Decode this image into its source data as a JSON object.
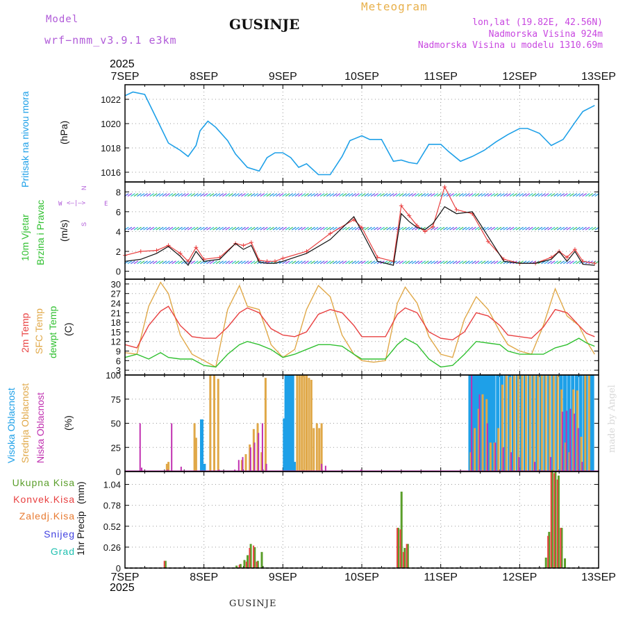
{
  "header": {
    "model_label": "Model",
    "model_name": "wrf−nmm_v3.9.1  e3km",
    "location": "GUSINJE",
    "meteogram": "Meteogram",
    "coords": "lon,lat (19.82E, 42.56N)",
    "elevation": "Nadmorska Visina 924m",
    "model_elevation": "Nadmorska Visina u modelu 1310.69m",
    "year_top": "2025",
    "year_bottom": "2025",
    "footer_location": "GUSINJE",
    "watermark": "made by Angel"
  },
  "colors": {
    "pressure": "#1ea0e8",
    "t2m": "#e84040",
    "sfc": "#e0a848",
    "dewpt": "#30c030",
    "high_cloud": "#1ea0e8",
    "mid_cloud": "#e0a848",
    "low_cloud": "#c030b0",
    "total_precip": "#5a9e2a",
    "conv_precip": "#e84040",
    "wind_speed": "#101010"
  },
  "chart_data": [
    {
      "type": "line",
      "title": "Pritisak na nivou mora",
      "unit_label": "(hPa)",
      "x_tick_labels": [
        "7SEP",
        "8SEP",
        "9SEP",
        "10SEP",
        "11SEP",
        "12SEP",
        "13SEP"
      ],
      "ylim": [
        1015.2,
        1023.2
      ],
      "y_ticks": [
        1016,
        1018,
        1020,
        1022
      ],
      "grid": true,
      "x_days": [
        0,
        0.1,
        0.25,
        0.4,
        0.55,
        0.7,
        0.8,
        0.9,
        0.95,
        1.05,
        1.15,
        1.3,
        1.4,
        1.55,
        1.7,
        1.8,
        1.9,
        2.0,
        2.1,
        2.2,
        2.3,
        2.45,
        2.6,
        2.75,
        2.85,
        3.0,
        3.1,
        3.25,
        3.4,
        3.5,
        3.6,
        3.7,
        3.85,
        4.0,
        4.1,
        4.25,
        4.4,
        4.55,
        4.7,
        4.85,
        5.0,
        5.1,
        5.25,
        5.4,
        5.55,
        5.7,
        5.8,
        5.95
      ],
      "values": [
        1022.3,
        1022.6,
        1022.4,
        1020.4,
        1018.4,
        1017.8,
        1017.3,
        1018.2,
        1019.4,
        1020.2,
        1019.7,
        1018.6,
        1017.5,
        1016.4,
        1016.1,
        1017.2,
        1017.6,
        1017.6,
        1017.2,
        1016.4,
        1016.7,
        1015.8,
        1015.8,
        1017.3,
        1018.6,
        1019.0,
        1018.7,
        1018.7,
        1016.9,
        1017.0,
        1016.8,
        1016.7,
        1018.3,
        1018.3,
        1017.7,
        1016.9,
        1017.3,
        1017.8,
        1018.5,
        1019.1,
        1019.6,
        1019.6,
        1019.2,
        1018.2,
        1018.7,
        1020.1,
        1021.0,
        1021.5
      ]
    },
    {
      "type": "line",
      "title": "10m Vjetar Brzina i Pravac",
      "unit_label": "(m/s)",
      "compass": {
        "n": "N",
        "s": "S",
        "e": "E",
        "w": "W"
      },
      "ylim": [
        -0.8,
        9.0
      ],
      "y_ticks": [
        0,
        2,
        4,
        6,
        8
      ],
      "grid": true,
      "direction_band_levels": [
        0.9,
        4.3,
        7.7
      ],
      "series": [
        {
          "name": "wind speed",
          "x_days": [
            0,
            0.2,
            0.4,
            0.55,
            0.7,
            0.8,
            0.9,
            1.0,
            1.2,
            1.4,
            1.5,
            1.6,
            1.7,
            1.8,
            1.9,
            2.0,
            2.3,
            2.6,
            2.9,
            3.0,
            3.2,
            3.4,
            3.5,
            3.6,
            3.7,
            3.8,
            3.9,
            4.05,
            4.2,
            4.4,
            4.6,
            4.8,
            5.0,
            5.2,
            5.4,
            5.5,
            5.6,
            5.7,
            5.8,
            5.95
          ],
          "values": [
            1.0,
            1.2,
            1.8,
            2.5,
            1.5,
            0.6,
            2.0,
            1.0,
            1.2,
            2.8,
            2.2,
            2.6,
            0.9,
            0.8,
            0.8,
            1.0,
            1.8,
            3.2,
            5.5,
            4.0,
            1.0,
            0.6,
            5.8,
            5.0,
            4.4,
            4.2,
            4.8,
            6.5,
            5.8,
            6.0,
            3.5,
            1.0,
            0.8,
            0.8,
            1.2,
            2.0,
            1.0,
            2.0,
            0.7,
            0.6
          ]
        },
        {
          "name": "gust",
          "x_days": [
            0,
            0.2,
            0.4,
            0.55,
            0.7,
            0.8,
            0.9,
            1.0,
            1.2,
            1.4,
            1.5,
            1.6,
            1.7,
            1.8,
            1.9,
            2.0,
            2.3,
            2.6,
            2.9,
            3.0,
            3.2,
            3.4,
            3.5,
            3.6,
            3.7,
            3.8,
            3.9,
            4.05,
            4.2,
            4.4,
            4.6,
            4.8,
            5.0,
            5.2,
            5.4,
            5.5,
            5.6,
            5.7,
            5.8,
            5.95
          ],
          "values": [
            1.6,
            2.0,
            2.1,
            2.6,
            1.8,
            1.0,
            2.4,
            1.2,
            1.4,
            2.8,
            2.6,
            2.9,
            1.1,
            1.0,
            1.0,
            1.3,
            2.0,
            3.8,
            5.2,
            4.4,
            1.4,
            1.0,
            6.6,
            5.6,
            4.6,
            4.0,
            4.5,
            8.5,
            6.2,
            5.8,
            3.0,
            1.2,
            0.8,
            0.8,
            1.4,
            2.0,
            1.4,
            2.2,
            1.0,
            0.8
          ]
        }
      ]
    },
    {
      "type": "line",
      "title": "2m Temp / SFC Temp / dewpt Temp",
      "unit_label": "(C)",
      "ylim": [
        1.5,
        31.5
      ],
      "y_ticks": [
        3,
        6,
        9,
        12,
        15,
        18,
        21,
        24,
        27,
        30
      ],
      "grid": true,
      "series": [
        {
          "name": "2m Temp",
          "x_days": [
            0,
            0.15,
            0.3,
            0.45,
            0.55,
            0.7,
            0.85,
            1.0,
            1.15,
            1.3,
            1.45,
            1.55,
            1.7,
            1.85,
            2.0,
            2.15,
            2.3,
            2.45,
            2.6,
            2.75,
            2.9,
            3.0,
            3.15,
            3.3,
            3.45,
            3.55,
            3.7,
            3.85,
            4.0,
            4.15,
            4.3,
            4.45,
            4.6,
            4.75,
            4.85,
            5.0,
            5.15,
            5.3,
            5.45,
            5.6,
            5.75,
            5.85,
            5.95
          ],
          "values": [
            11,
            10,
            17,
            21.5,
            23,
            17,
            13.5,
            13,
            13,
            16.5,
            21,
            22.5,
            21,
            16,
            14,
            13.5,
            15,
            20.5,
            22,
            21,
            17,
            13.5,
            13.5,
            13.5,
            20.5,
            22.5,
            21,
            15,
            13,
            12.5,
            15,
            21,
            20,
            17,
            14,
            13.5,
            13,
            16.5,
            22,
            21,
            17,
            14.5,
            13.5
          ]
        },
        {
          "name": "SFC Temp",
          "x_days": [
            0,
            0.15,
            0.3,
            0.45,
            0.55,
            0.7,
            0.85,
            1.0,
            1.15,
            1.3,
            1.45,
            1.55,
            1.7,
            1.85,
            2.0,
            2.15,
            2.3,
            2.45,
            2.6,
            2.75,
            2.9,
            3.0,
            3.15,
            3.3,
            3.45,
            3.55,
            3.7,
            3.85,
            4.0,
            4.15,
            4.3,
            4.45,
            4.6,
            4.75,
            4.85,
            5.0,
            5.15,
            5.3,
            5.45,
            5.6,
            5.75,
            5.85,
            5.95
          ],
          "values": [
            8.5,
            8,
            23,
            30.5,
            27,
            14,
            8,
            6,
            4,
            22,
            29.5,
            23,
            22,
            11,
            7,
            9.5,
            22,
            29.5,
            26,
            14,
            8,
            6,
            5.5,
            6,
            24,
            29,
            24,
            13.5,
            8,
            7,
            19,
            26,
            22,
            15,
            11,
            9,
            8,
            17,
            28.5,
            20,
            17,
            12,
            8
          ]
        },
        {
          "name": "dewpt Temp",
          "x_days": [
            0,
            0.15,
            0.3,
            0.45,
            0.55,
            0.7,
            0.85,
            1.0,
            1.15,
            1.3,
            1.45,
            1.55,
            1.7,
            1.85,
            2.0,
            2.15,
            2.3,
            2.45,
            2.6,
            2.75,
            2.9,
            3.0,
            3.15,
            3.3,
            3.45,
            3.55,
            3.7,
            3.85,
            4.0,
            4.15,
            4.3,
            4.45,
            4.6,
            4.75,
            4.85,
            5.0,
            5.15,
            5.3,
            5.45,
            5.6,
            5.75,
            5.85,
            5.95
          ],
          "values": [
            7,
            8,
            6.5,
            8.5,
            7,
            6.5,
            6.5,
            4.5,
            4,
            8,
            11,
            12,
            11,
            9.5,
            7,
            8,
            9.5,
            11,
            11,
            10.5,
            8,
            6.5,
            6.5,
            6.5,
            11,
            13,
            11,
            6.5,
            4,
            4.5,
            8,
            12,
            11.5,
            11,
            9,
            8,
            8,
            8,
            10,
            11,
            13,
            11.5,
            10.5
          ]
        }
      ]
    },
    {
      "type": "bar",
      "title": "Visoka Oblacnost / Srednja Oblacnost / Niska Oblacnost",
      "unit_label": "(%)",
      "ylim": [
        0,
        100
      ],
      "y_ticks": [
        0,
        25,
        50,
        75,
        100
      ],
      "grid": true,
      "series": [
        {
          "name": "Visoka Oblacnost",
          "x_days": [
            0.95,
            0.98,
            2.0,
            2.02,
            2.04,
            2.06,
            2.08,
            2.1,
            2.12,
            4.35,
            4.38,
            4.41,
            4.44,
            4.47,
            4.5,
            4.53,
            4.56,
            4.59,
            4.62,
            4.65,
            4.7,
            4.75,
            4.8,
            4.85,
            4.9,
            4.95,
            5.0,
            5.05,
            5.1,
            5.15,
            5.2,
            5.25,
            5.3,
            5.35,
            5.4,
            5.45,
            5.5,
            5.55,
            5.6,
            5.65,
            5.7,
            5.75,
            5.8,
            5.5,
            5.55,
            5.6,
            5.8,
            5.82,
            5.88,
            5.9
          ],
          "values": [
            54,
            8,
            55,
            100,
            100,
            100,
            100,
            100,
            10,
            100,
            100,
            100,
            100,
            100,
            100,
            100,
            100,
            100,
            100,
            100,
            100,
            100,
            100,
            100,
            100,
            100,
            100,
            100,
            100,
            100,
            100,
            100,
            100,
            100,
            100,
            100,
            100,
            100,
            100,
            100,
            100,
            100,
            100,
            100,
            100,
            100,
            100,
            100,
            100,
            100
          ]
        },
        {
          "name": "Srednja Oblacnost",
          "x_days": [
            0.5,
            0.52,
            0.85,
            0.87,
            1.05,
            1.1,
            1.15,
            1.45,
            1.5,
            1.55,
            1.6,
            1.65,
            1.7,
            1.75,
            2.15,
            2.18,
            2.21,
            2.24,
            2.27,
            2.3,
            2.33,
            2.36,
            2.4,
            2.43,
            2.46,
            4.35,
            4.4,
            4.45,
            4.5,
            4.55,
            4.6,
            4.65,
            4.7,
            4.75,
            4.8,
            4.85,
            4.9,
            4.95,
            5.0,
            5.05,
            5.1,
            5.15,
            5.2,
            5.25,
            5.3,
            5.35,
            5.4,
            5.45,
            5.5,
            5.55,
            5.6,
            5.65,
            5.7,
            5.75,
            5.8,
            5.85
          ],
          "values": [
            8,
            10,
            50,
            35,
            100,
            100,
            96,
            12,
            18,
            28,
            44,
            50,
            20,
            97,
            100,
            100,
            100,
            100,
            100,
            97,
            95,
            45,
            50,
            45,
            50,
            20,
            45,
            65,
            80,
            75,
            30,
            30,
            45,
            90,
            100,
            98,
            100,
            100,
            100,
            100,
            100,
            100,
            100,
            100,
            100,
            100,
            100,
            100,
            85,
            30,
            20,
            85,
            84,
            36,
            100,
            100
          ]
        },
        {
          "name": "Niska Oblacnost",
          "x_days": [
            0.2,
            0.22,
            0.55,
            0.6,
            0.72,
            1.2,
            1.4,
            1.45,
            1.5,
            1.6,
            1.65,
            1.7,
            1.75,
            1.8,
            2.5,
            2.55,
            3.0,
            4.4,
            4.5,
            4.6,
            4.7,
            4.8,
            4.9,
            5.0,
            5.2,
            5.4,
            5.55,
            5.6,
            5.65,
            5.7,
            5.75,
            5.8
          ],
          "values": [
            50,
            4,
            2,
            50,
            5,
            2,
            2,
            12,
            15,
            25,
            30,
            40,
            50,
            8,
            8,
            6,
            2,
            100,
            80,
            50,
            30,
            25,
            20,
            15,
            10,
            15,
            62,
            63,
            65,
            60,
            45,
            10
          ]
        }
      ]
    },
    {
      "type": "bar",
      "title": "1hr Precip",
      "unit_label": "(mm)",
      "ylim": [
        0,
        1.2
      ],
      "y_ticks": [
        0,
        0.26,
        0.52,
        0.78,
        1.04
      ],
      "y_tick_labels": [
        "0",
        "0.26",
        "0.52",
        "0.78",
        "1.04"
      ],
      "grid": true,
      "legend": [
        "Ukupna Kisa",
        "Konvek.Kisa",
        "Zaledj.Kisa",
        "Snijeg",
        "Grad"
      ],
      "series": [
        {
          "name": "Ukupna Kisa",
          "x_days": [
            0.5,
            1.4,
            1.45,
            1.5,
            1.54,
            1.58,
            1.63,
            1.67,
            1.72,
            3.45,
            3.49,
            3.53,
            3.57,
            3.61,
            3.65,
            5.32,
            5.36,
            5.4,
            5.44,
            5.48,
            5.52,
            5.56,
            5.6
          ],
          "values": [
            0.09,
            0.03,
            0.05,
            0.1,
            0.16,
            0.3,
            0.26,
            0.09,
            0.2,
            0.5,
            0.95,
            0.25,
            0.3,
            0,
            0,
            0.13,
            0.45,
            1.22,
            1.2,
            1.15,
            0.5,
            0.12,
            0
          ]
        },
        {
          "name": "Konvek.Kisa",
          "x_days": [
            0.49,
            1.44,
            1.53,
            1.57,
            1.62,
            1.66,
            3.44,
            3.48,
            3.52,
            3.56,
            5.35,
            5.39,
            5.43,
            5.47,
            5.51
          ],
          "values": [
            0.09,
            0.04,
            0.08,
            0.25,
            0.28,
            0.08,
            0.5,
            0.48,
            0.2,
            0.3,
            0.4,
            1.2,
            1.18,
            1.1,
            0.5
          ]
        }
      ]
    }
  ],
  "axis_labels": {
    "pressure": "Pritisak na nivou mora",
    "wind_a": "10m Vjetar",
    "wind_b": "Brzina i Pravac",
    "temp_a": "2m Temp",
    "temp_b": "SFC Temp",
    "temp_c": "dewpt Temp",
    "cloud_a": "Visoka Oblacnost",
    "cloud_b": "Srednja Oblacnost",
    "cloud_c": "Niska Oblacnost"
  }
}
